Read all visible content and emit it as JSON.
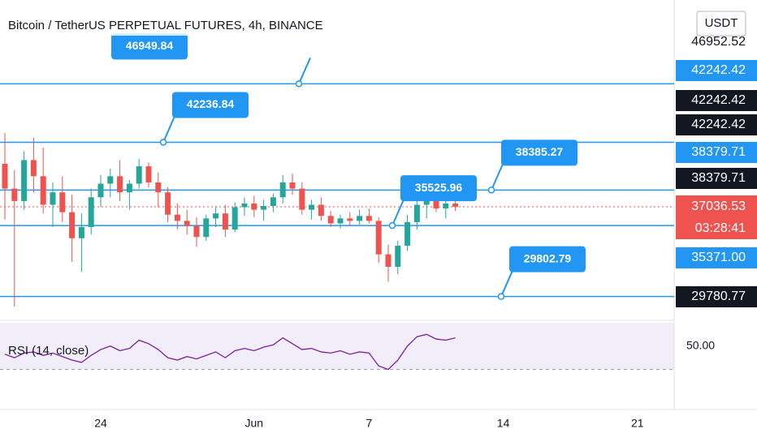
{
  "chart_data": [
    {
      "type": "candlestick",
      "title": "Bitcoin / TetherUS PERPETUAL FUTURES, 4h, BINANCE",
      "categories": [
        null,
        null,
        null,
        null,
        null,
        null,
        null,
        null,
        null,
        null,
        "24",
        null,
        null,
        null,
        null,
        null,
        null,
        null,
        null,
        null,
        null,
        null,
        null,
        null,
        null,
        null,
        "Jun",
        null,
        null,
        null,
        null,
        null,
        null,
        null,
        null,
        null,
        null,
        null,
        "7",
        null,
        null,
        null,
        null,
        null,
        null,
        null,
        null,
        null,
        null,
        null,
        null,
        null,
        "14",
        null,
        null,
        null,
        null,
        null,
        null,
        null,
        null,
        null,
        null,
        null,
        null,
        null,
        "21",
        null,
        null,
        null
      ],
      "open": [
        40500,
        38500,
        37500,
        40800,
        39500,
        37200,
        38200,
        36600,
        34500,
        35400,
        37800,
        38900,
        39500,
        38200,
        38900,
        40300,
        39000,
        38200,
        36400,
        35900,
        35500,
        34600,
        36100,
        36500,
        35200,
        37000,
        37300,
        36800,
        37100,
        37800,
        39000,
        38500,
        36800,
        37200,
        36300,
        35700,
        36100,
        35900,
        36300,
        35900,
        33200,
        32200,
        33900,
        35800,
        37200,
        37500,
        36900,
        37300,
        null,
        null,
        null,
        null,
        null,
        null,
        null,
        null,
        null,
        null,
        null,
        null,
        null,
        null,
        null,
        null,
        null,
        null,
        null,
        null,
        null,
        null
      ],
      "high": [
        43000,
        40000,
        41500,
        42600,
        41800,
        39000,
        39500,
        38000,
        36500,
        38500,
        39600,
        40100,
        40800,
        39200,
        40900,
        40600,
        39800,
        38600,
        37300,
        36800,
        36200,
        36400,
        37000,
        37200,
        37400,
        37800,
        37900,
        37600,
        38100,
        39600,
        39700,
        39000,
        37600,
        37800,
        36700,
        36400,
        36600,
        36800,
        36900,
        36200,
        34000,
        34300,
        36400,
        37700,
        38000,
        38500,
        37600,
        37600,
        null,
        null,
        null,
        null,
        null,
        null,
        null,
        null,
        null,
        null,
        null,
        null,
        null,
        null,
        null,
        null,
        null,
        null,
        null,
        null,
        null,
        null
      ],
      "low": [
        36000,
        29000,
        36800,
        38200,
        36500,
        35400,
        35800,
        32600,
        31800,
        34800,
        37000,
        37800,
        37500,
        36800,
        38500,
        38600,
        37000,
        35800,
        35200,
        34800,
        33800,
        34300,
        35400,
        34600,
        35000,
        36300,
        36200,
        35900,
        36600,
        37300,
        38000,
        36400,
        36000,
        35900,
        35400,
        35300,
        35500,
        35600,
        35700,
        32500,
        31000,
        31600,
        33500,
        35200,
        36100,
        36600,
        36100,
        36700,
        null,
        null,
        null,
        null,
        null,
        null,
        null,
        null,
        null,
        null,
        null,
        null,
        null,
        null,
        null,
        null,
        null,
        null,
        null,
        null,
        null,
        null
      ],
      "close": [
        38500,
        37500,
        40800,
        39500,
        37200,
        38200,
        36600,
        34500,
        35400,
        37800,
        38900,
        39500,
        38200,
        38900,
        40300,
        39000,
        38200,
        36400,
        35900,
        35500,
        34600,
        36100,
        36500,
        35200,
        37000,
        37300,
        36800,
        37100,
        37800,
        39000,
        38500,
        36800,
        37200,
        36300,
        35700,
        36100,
        35900,
        36300,
        35900,
        33200,
        32200,
        33900,
        35800,
        37200,
        37500,
        36900,
        37300,
        37036.53,
        null,
        null,
        null,
        null,
        null,
        null,
        null,
        null,
        null,
        null,
        null,
        null,
        null,
        null,
        null,
        null,
        null,
        null,
        null,
        null,
        null,
        null
      ],
      "up_color": "#26a69a",
      "down_color": "#ef5350",
      "ylim": [
        27886,
        53704
      ],
      "levels": [
        46949.84,
        42236.84,
        38385.27,
        35525.96,
        29802.79
      ],
      "level_color": "#2196f3",
      "last_price": 37036.53,
      "countdown": "03:28:41"
    },
    {
      "type": "line",
      "title": "RSI (14, close)",
      "values": [
        43,
        40,
        44,
        45,
        42,
        44,
        41,
        38,
        36,
        42,
        47,
        50,
        46,
        48,
        55,
        52,
        47,
        40,
        38,
        41,
        39,
        42,
        45,
        40,
        46,
        48,
        46,
        49,
        51,
        57,
        52,
        47,
        48,
        45,
        44,
        46,
        43,
        45,
        44,
        33,
        30,
        38,
        50,
        58,
        60,
        56,
        55,
        57,
        null,
        null,
        null,
        null,
        null,
        null,
        null,
        null,
        null,
        null,
        null,
        null,
        null,
        null,
        null,
        null,
        null,
        null,
        null,
        null,
        null,
        null
      ],
      "color": "#7b1fa2",
      "ylim": [
        20,
        72
      ],
      "yticks": [
        {
          "value": 50,
          "label": "50.00"
        }
      ],
      "band": [
        30,
        70
      ]
    }
  ],
  "price_scale": {
    "labels": [
      "46952.52",
      "42242.42",
      "42242.42",
      "42242.42",
      "38379.71",
      "38379.71",
      "35371.00",
      "29780.77"
    ],
    "currency": "USDT"
  }
}
